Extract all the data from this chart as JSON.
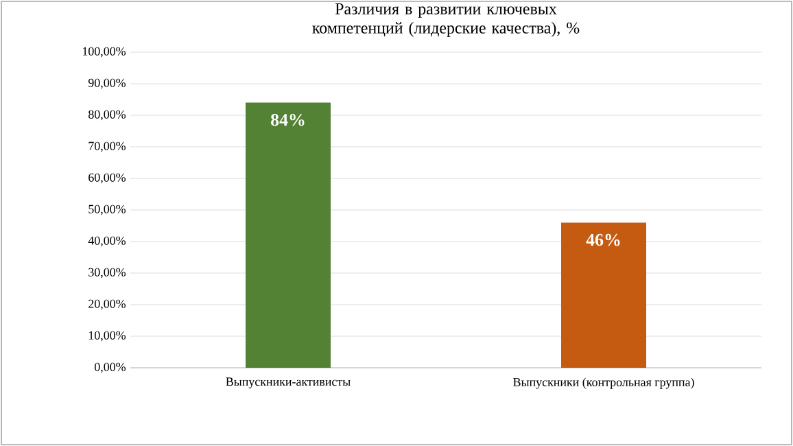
{
  "chart_data": {
    "type": "bar",
    "title": "Различия в развитии ключевых компетенций (лидерские качества), %",
    "categories": [
      "Выпускники-активисты",
      "Выпускники (контрольная группа)"
    ],
    "values": [
      84,
      46
    ],
    "colors": [
      "#548235",
      "#c55a11"
    ],
    "value_labels": [
      "84%",
      "46%"
    ],
    "ylim": [
      0,
      100
    ],
    "yticks": [
      {
        "value": 0,
        "label": "0,00%"
      },
      {
        "value": 10,
        "label": "10,00%"
      },
      {
        "value": 20,
        "label": "20,00%"
      },
      {
        "value": 30,
        "label": "30,00%"
      },
      {
        "value": 40,
        "label": "40,00%"
      },
      {
        "value": 50,
        "label": "50,00%"
      },
      {
        "value": 60,
        "label": "60,00%"
      },
      {
        "value": 70,
        "label": "70,00%"
      },
      {
        "value": 80,
        "label": "80,00%"
      },
      {
        "value": 90,
        "label": "90,00%"
      },
      {
        "value": 100,
        "label": "100,00%"
      }
    ],
    "grid": "y"
  }
}
